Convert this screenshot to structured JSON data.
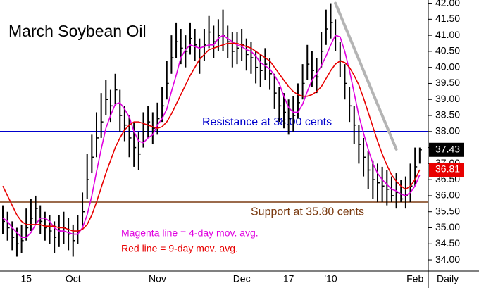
{
  "chart_data": {
    "type": "ohlc",
    "title": "March Soybean Oil",
    "categories": [
      null,
      null,
      null,
      null,
      null,
      "15",
      null,
      null,
      null,
      null,
      null,
      null,
      null,
      null,
      null,
      "Oct",
      null,
      null,
      null,
      null,
      null,
      null,
      null,
      null,
      null,
      null,
      null,
      null,
      null,
      null,
      null,
      null,
      null,
      "Nov",
      null,
      null,
      null,
      null,
      null,
      null,
      null,
      null,
      null,
      null,
      null,
      null,
      null,
      null,
      null,
      null,
      null,
      "Dec",
      null,
      null,
      null,
      null,
      null,
      null,
      null,
      null,
      null,
      "17",
      null,
      null,
      null,
      null,
      null,
      null,
      null,
      null,
      "'10",
      null,
      null,
      null,
      null,
      null,
      null,
      null,
      null,
      null,
      null,
      null,
      null,
      null,
      null,
      null,
      null,
      null,
      "Feb",
      null
    ],
    "x_label_right": "Daily",
    "bars": {
      "color": "#000000",
      "high": [
        35.7,
        35.5,
        35.2,
        35.0,
        35.1,
        35.6,
        35.9,
        36.0,
        35.7,
        35.5,
        35.4,
        35.2,
        35.4,
        35.5,
        35.3,
        35.1,
        35.4,
        36.1,
        37.3,
        37.9,
        38.6,
        39.2,
        39.6,
        39.3,
        39.8,
        39.3,
        38.8,
        38.5,
        38.3,
        38.0,
        38.6,
        38.8,
        38.6,
        38.9,
        39.4,
        40.2,
        41.0,
        41.4,
        41.2,
        41.0,
        41.4,
        41.2,
        40.9,
        41.2,
        41.6,
        41.3,
        41.5,
        41.8,
        41.3,
        41.1,
        41.1,
        41.2,
        40.9,
        40.8,
        40.5,
        40.4,
        40.6,
        40.3,
        39.8,
        39.4,
        39.2,
        39.0,
        39.1,
        39.5,
        40.1,
        40.7,
        40.5,
        40.3,
        41.1,
        41.8,
        42.0,
        41.5,
        40.8,
        40.1,
        39.4,
        38.8,
        38.2,
        37.8,
        37.4,
        37.1,
        37.0,
        36.9,
        36.8,
        36.6,
        36.7,
        36.5,
        36.6,
        37.0,
        37.5,
        37.5
      ],
      "low": [
        34.8,
        34.6,
        34.3,
        34.1,
        34.2,
        34.6,
        34.9,
        35.1,
        34.8,
        34.6,
        34.5,
        34.2,
        34.4,
        34.5,
        34.3,
        34.1,
        34.5,
        35.0,
        35.9,
        36.7,
        37.2,
        37.8,
        38.5,
        38.3,
        38.8,
        38.0,
        37.7,
        37.2,
        36.9,
        36.8,
        37.5,
        37.8,
        37.6,
        37.9,
        38.3,
        39.0,
        39.8,
        40.3,
        40.1,
        40.0,
        40.4,
        40.2,
        39.8,
        40.2,
        40.6,
        40.3,
        40.5,
        40.5,
        40.3,
        40.0,
        40.1,
        40.2,
        39.9,
        39.8,
        39.5,
        39.4,
        39.6,
        39.3,
        38.7,
        38.3,
        38.1,
        37.9,
        38.0,
        38.4,
        39.0,
        39.6,
        39.4,
        39.2,
        40.0,
        40.7,
        40.9,
        40.5,
        39.7,
        39.0,
        38.3,
        37.6,
        37.0,
        36.6,
        36.2,
        35.9,
        35.8,
        35.8,
        35.7,
        35.8,
        35.6,
        35.8,
        35.6,
        35.8,
        36.3,
        37.0
      ],
      "close": [
        35.2,
        35.0,
        34.7,
        34.5,
        34.6,
        35.0,
        35.3,
        35.6,
        35.2,
        35.0,
        34.9,
        34.7,
        34.9,
        35.0,
        34.8,
        34.6,
        34.9,
        35.5,
        36.5,
        37.2,
        37.8,
        38.3,
        39.0,
        38.8,
        39.3,
        38.5,
        38.2,
        37.8,
        37.5,
        37.3,
        38.0,
        38.3,
        38.1,
        38.4,
        38.8,
        39.5,
        40.3,
        40.8,
        40.6,
        40.5,
        40.9,
        40.7,
        40.3,
        40.7,
        41.1,
        40.8,
        41.0,
        41.0,
        40.8,
        40.5,
        40.6,
        40.7,
        40.4,
        40.3,
        40.0,
        39.9,
        40.1,
        39.8,
        39.2,
        38.8,
        38.6,
        38.4,
        38.5,
        38.9,
        39.5,
        40.1,
        39.9,
        39.7,
        40.5,
        41.2,
        41.4,
        41.0,
        40.2,
        39.5,
        38.8,
        38.2,
        37.6,
        37.2,
        36.8,
        36.5,
        36.4,
        36.3,
        36.2,
        36.0,
        36.1,
        35.9,
        36.0,
        36.3,
        36.9,
        37.43
      ]
    },
    "lines": [
      {
        "color": "#e000e0",
        "values": [
          35.3,
          35.2,
          35.0,
          34.85,
          34.7,
          34.7,
          34.85,
          35.1,
          35.3,
          35.3,
          35.2,
          35.0,
          34.9,
          34.9,
          34.85,
          34.8,
          34.8,
          35.0,
          35.4,
          36.0,
          36.75,
          37.45,
          38.1,
          38.5,
          38.85,
          38.9,
          38.7,
          38.45,
          38.0,
          37.7,
          37.65,
          37.8,
          37.9,
          38.2,
          38.4,
          38.7,
          39.25,
          39.75,
          40.3,
          40.55,
          40.7,
          40.65,
          40.6,
          40.65,
          40.7,
          40.7,
          40.9,
          41.0,
          40.9,
          40.8,
          40.7,
          40.65,
          40.55,
          40.5,
          40.35,
          40.15,
          40.05,
          39.95,
          39.75,
          39.5,
          39.1,
          38.75,
          38.6,
          38.6,
          38.85,
          39.25,
          39.6,
          39.8,
          40.05,
          40.35,
          40.7,
          41.0,
          40.95,
          40.5,
          39.9,
          39.2,
          38.5,
          37.95,
          37.45,
          37.0,
          36.7,
          36.5,
          36.35,
          36.2,
          36.15,
          36.05,
          36.0,
          36.1,
          36.3,
          36.65
        ]
      },
      {
        "color": "#e80000",
        "values": [
          36.3,
          36.0,
          35.7,
          35.4,
          35.2,
          35.1,
          35.1,
          35.1,
          35.1,
          35.05,
          35.05,
          35.05,
          35.0,
          35.0,
          34.95,
          34.9,
          34.9,
          34.95,
          35.1,
          35.4,
          35.8,
          36.25,
          36.7,
          37.1,
          37.5,
          37.8,
          38.05,
          38.2,
          38.3,
          38.3,
          38.25,
          38.2,
          38.15,
          38.1,
          38.15,
          38.3,
          38.55,
          38.85,
          39.15,
          39.45,
          39.75,
          40.0,
          40.25,
          40.4,
          40.55,
          40.6,
          40.65,
          40.7,
          40.75,
          40.75,
          40.75,
          40.7,
          40.65,
          40.6,
          40.5,
          40.4,
          40.3,
          40.2,
          40.0,
          39.8,
          39.6,
          39.4,
          39.25,
          39.15,
          39.1,
          39.1,
          39.15,
          39.25,
          39.4,
          39.65,
          39.9,
          40.1,
          40.2,
          40.15,
          40.0,
          39.75,
          39.45,
          39.05,
          38.6,
          38.15,
          37.7,
          37.3,
          36.95,
          36.65,
          36.45,
          36.3,
          36.2,
          36.3,
          36.5,
          36.81
        ]
      }
    ],
    "trendline": {
      "color": "#b4b4b4",
      "x": [
        71,
        84
      ],
      "y": [
        42.0,
        37.45
      ]
    },
    "hlines": [
      {
        "value": 38.0,
        "color": "#0000cc",
        "label": "Resistance at 38.00 cents"
      },
      {
        "value": 35.8,
        "color": "#7a3a10",
        "label": "Support at 35.80 cents"
      }
    ],
    "annotations": [
      {
        "text": "Magenta line = 4-day mov. avg.",
        "color": "#e000e0"
      },
      {
        "text": "Red line = 9-day mov. avg.",
        "color": "#e80000"
      }
    ],
    "ylim": [
      33.65,
      42.1
    ],
    "yticks": [
      {
        "value": 34,
        "label": "34.00"
      },
      {
        "value": 34.5,
        "label": "34.50"
      },
      {
        "value": 35,
        "label": "35.00"
      },
      {
        "value": 35.5,
        "label": "35.50"
      },
      {
        "value": 36,
        "label": "36.00"
      },
      {
        "value": 36.5,
        "label": "36.50"
      },
      {
        "value": 37,
        "label": "37.00"
      },
      {
        "value": 37.5,
        "label": "37.50"
      },
      {
        "value": 38,
        "label": "38.00"
      },
      {
        "value": 38.5,
        "label": "38.50"
      },
      {
        "value": 39,
        "label": "39.00"
      },
      {
        "value": 39.5,
        "label": "39.50"
      },
      {
        "value": 40,
        "label": "40.00"
      },
      {
        "value": 40.5,
        "label": "40.50"
      },
      {
        "value": 41,
        "label": "41.00"
      },
      {
        "value": 41.5,
        "label": "41.50"
      },
      {
        "value": 42,
        "label": "42.00"
      }
    ]
  }
}
